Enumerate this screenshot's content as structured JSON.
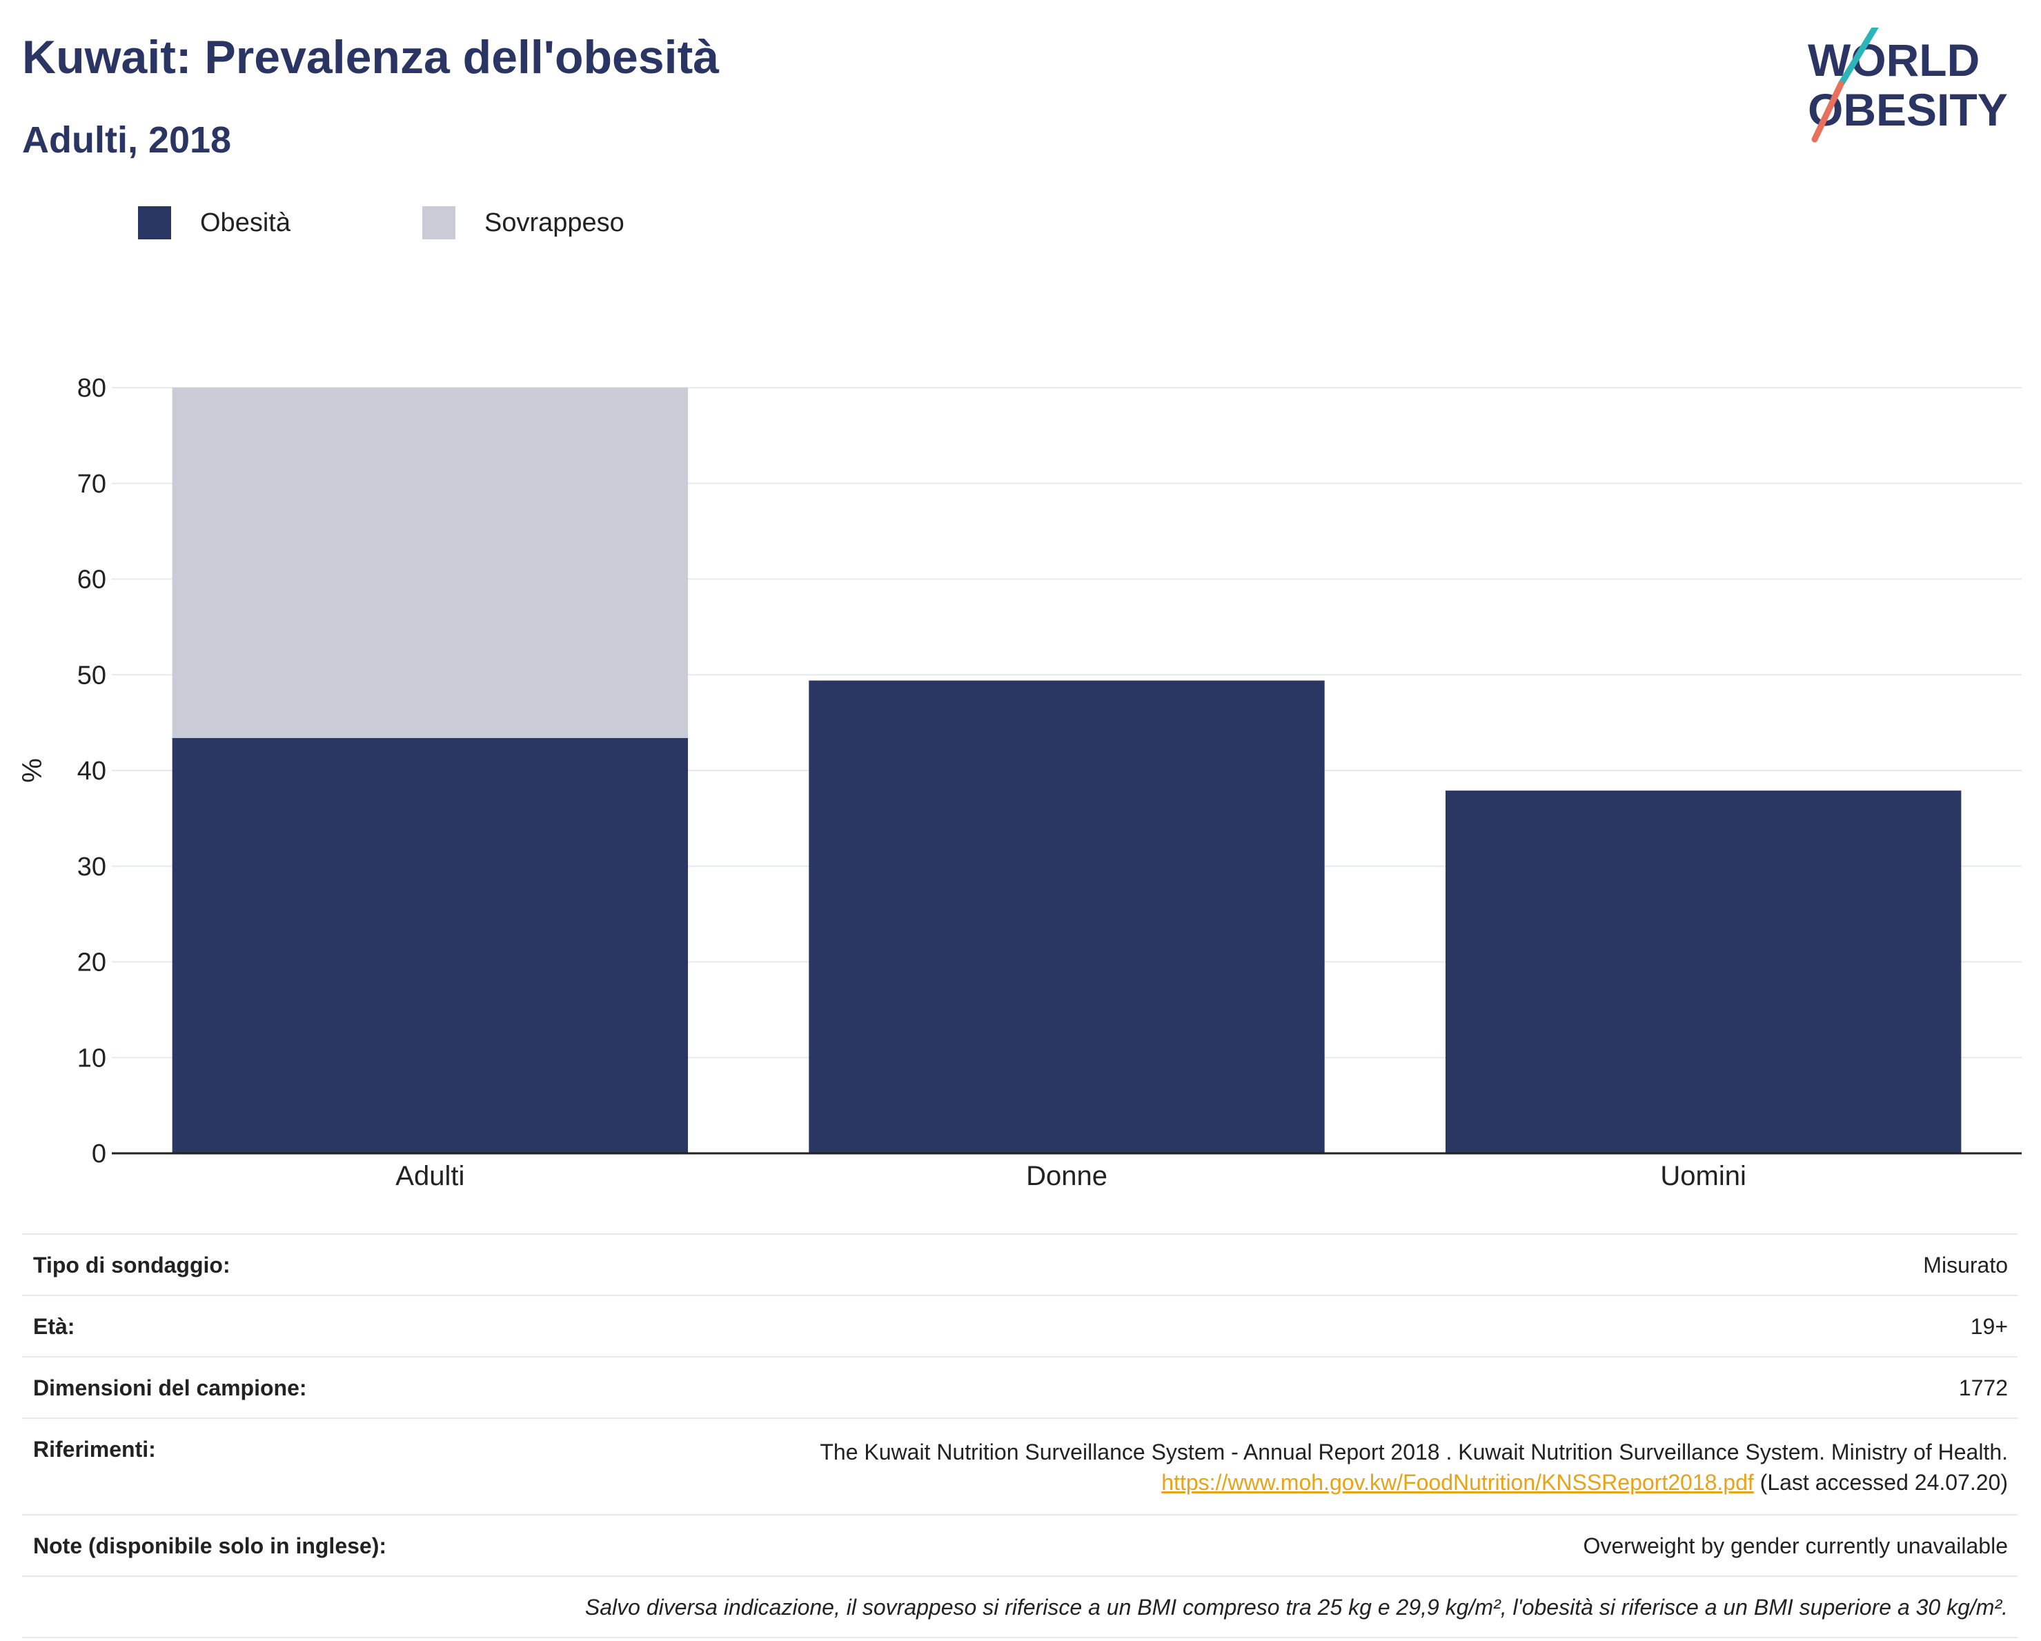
{
  "header": {
    "title": "Kuwait: Prevalenza dell'obesità",
    "subtitle": "Adulti, 2018"
  },
  "logo": {
    "line1": "WORLD",
    "line2": "OBESITY",
    "colors": {
      "text": "#2a3564",
      "slash_top": "#2bb5b8",
      "slash_bottom": "#e8715d"
    }
  },
  "colors": {
    "obesity": "#2a3763",
    "overweight": "#c9ccd7",
    "grid": "#e6e9f2",
    "axis": "#222222",
    "link": "#e8a317"
  },
  "chart_data": {
    "type": "bar",
    "stacked": true,
    "categories": [
      "Adulti",
      "Donne",
      "Uomini"
    ],
    "series": [
      {
        "name": "Obesità",
        "values": [
          43.4,
          49.4,
          37.9
        ],
        "color": "#2a3763"
      },
      {
        "name": "Sovrappeso",
        "values": [
          36.6,
          null,
          null
        ],
        "color": "#c9ccd7"
      }
    ],
    "ylabel": "%",
    "xlabel": "",
    "ylim": [
      0,
      80
    ],
    "yticks": [
      0,
      10,
      20,
      30,
      40,
      50,
      60,
      70,
      80
    ],
    "grid": true,
    "legend_position": "top-left"
  },
  "info": {
    "survey_type": {
      "label": "Tipo di sondaggio:",
      "value": "Misurato"
    },
    "age": {
      "label": "Età:",
      "value": "19+"
    },
    "sample_size": {
      "label": "Dimensioni del campione:",
      "value": "1772"
    },
    "references": {
      "label": "Riferimenti:",
      "text": "The Kuwait Nutrition Surveillance System - Annual Report 2018 . Kuwait Nutrition Surveillance System. Ministry of Health.",
      "link": "https://www.moh.gov.kw/FoodNutrition/KNSSReport2018.pdf",
      "accessed": "(Last accessed 24.07.20)"
    },
    "notes": {
      "label": "Note (disponibile solo in inglese):",
      "value": "Overweight by gender currently unavailable"
    },
    "footnote": "Salvo diversa indicazione, il sovrappeso si riferisce a un BMI compreso tra 25 kg e 29,9 kg/m², l'obesità si riferisce a un BMI superiore a 30 kg/m²."
  }
}
